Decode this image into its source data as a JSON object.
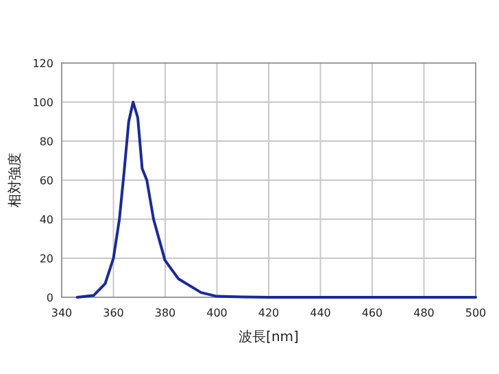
{
  "chart_data": {
    "type": "line",
    "xlabel": "波長[nm]",
    "ylabel": "相対強度",
    "x": [
      346,
      352.4,
      356.8,
      360,
      362.3,
      364.1,
      365.9,
      367.6,
      369.4,
      371.1,
      372.9,
      375.5,
      379.9,
      385.1,
      393.9,
      400,
      410,
      420,
      500
    ],
    "series": [
      {
        "color": "#1a2a9a",
        "values": [
          0,
          1,
          7,
          20,
          40,
          64,
          90,
          100,
          92,
          66,
          60,
          40,
          19,
          9.5,
          2.4,
          0.5,
          0.2,
          0,
          0
        ]
      }
    ],
    "xlim": [
      340,
      500
    ],
    "xticks": [
      340,
      360,
      380,
      400,
      420,
      440,
      460,
      480,
      500
    ],
    "ylim": [
      0,
      120
    ],
    "yticks": [
      0,
      20,
      40,
      60,
      80,
      100,
      120
    ],
    "grid": true,
    "marker": "none",
    "line_style": "solid"
  }
}
